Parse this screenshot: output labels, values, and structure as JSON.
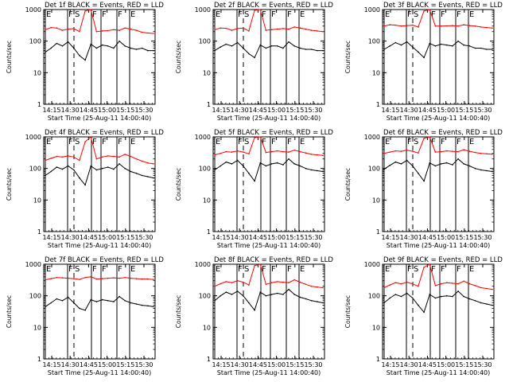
{
  "chart_data": [
    {
      "type": "line",
      "title": "Det 1f BLACK = Events, RED = LLD",
      "xlabel": "Start Time (25-Aug-11 14:00:40)",
      "ylabel": "Counts/sec",
      "yscale": "log",
      "ylim": [
        1,
        1000
      ],
      "x_ticks": [
        "14:15",
        "14:30",
        "14:45",
        "15:00",
        "15:15",
        "15:30"
      ],
      "y_ticks": [
        "1",
        "10",
        "100",
        "1000"
      ],
      "markers": [
        {
          "label": "E",
          "style": "solid"
        },
        {
          "label": "F",
          "style": "solid"
        },
        {
          "label": "S",
          "style": "dashed"
        },
        {
          "label": "F",
          "style": "solid"
        },
        {
          "label": "F",
          "style": "solid"
        },
        {
          "label": "F",
          "style": "solid"
        },
        {
          "label": "E",
          "style": "solid"
        }
      ],
      "series": [
        {
          "color": "#ff0000",
          "values": [
            230,
            270,
            260,
            220,
            240,
            250,
            200,
            900,
            1000,
            200,
            210,
            215,
            230,
            220,
            260,
            240,
            220,
            190,
            180,
            175
          ]
        },
        {
          "color": "#000000",
          "values": [
            45,
            60,
            85,
            70,
            95,
            60,
            35,
            25,
            80,
            60,
            75,
            70,
            60,
            100,
            70,
            60,
            55,
            60,
            50,
            50
          ]
        }
      ]
    },
    {
      "type": "line",
      "title": "Det 2f BLACK = Events, RED = LLD",
      "xlabel": "Start Time (25-Aug-11 14:00:40)",
      "ylabel": "Counts/sec",
      "yscale": "log",
      "ylim": [
        1,
        1000
      ],
      "x_ticks": [
        "14:15",
        "14:30",
        "14:45",
        "15:00",
        "15:15",
        "15:30"
      ],
      "y_ticks": [
        "1",
        "10",
        "100",
        "1000"
      ],
      "markers": [
        {
          "label": "E",
          "style": "solid"
        },
        {
          "label": "F",
          "style": "solid"
        },
        {
          "label": "S",
          "style": "dashed"
        },
        {
          "label": "F",
          "style": "solid"
        },
        {
          "label": "F",
          "style": "solid"
        },
        {
          "label": "F",
          "style": "solid"
        },
        {
          "label": "E",
          "style": "solid"
        }
      ],
      "series": [
        {
          "color": "#ff0000",
          "values": [
            230,
            260,
            255,
            220,
            250,
            260,
            210,
            950,
            1000,
            220,
            230,
            240,
            250,
            240,
            280,
            260,
            240,
            220,
            210,
            200
          ]
        },
        {
          "color": "#000000",
          "values": [
            50,
            65,
            80,
            70,
            90,
            60,
            40,
            30,
            75,
            60,
            70,
            70,
            60,
            95,
            70,
            60,
            55,
            55,
            50,
            50
          ]
        }
      ]
    },
    {
      "type": "line",
      "title": "Det 3f BLACK = Events, RED = LLD",
      "xlabel": "Start Time (25-Aug-11 14:00:40)",
      "ylabel": "Counts/sec",
      "yscale": "log",
      "ylim": [
        1,
        1000
      ],
      "x_ticks": [
        "14:15",
        "14:30",
        "14:45",
        "15:00",
        "15:15",
        "15:30"
      ],
      "y_ticks": [
        "1",
        "10",
        "100",
        "1000"
      ],
      "markers": [
        {
          "label": "E",
          "style": "solid"
        },
        {
          "label": "F",
          "style": "solid"
        },
        {
          "label": "S",
          "style": "dashed"
        },
        {
          "label": "F",
          "style": "solid"
        },
        {
          "label": "F",
          "style": "solid"
        },
        {
          "label": "F",
          "style": "solid"
        },
        {
          "label": "E",
          "style": "solid"
        }
      ],
      "series": [
        {
          "color": "#ff0000",
          "values": [
            300,
            330,
            320,
            300,
            310,
            320,
            280,
            900,
            1000,
            300,
            300,
            305,
            310,
            300,
            330,
            310,
            300,
            280,
            270,
            260
          ]
        },
        {
          "color": "#000000",
          "values": [
            55,
            70,
            90,
            75,
            95,
            65,
            45,
            30,
            85,
            70,
            80,
            75,
            70,
            100,
            75,
            70,
            60,
            60,
            55,
            55
          ]
        }
      ]
    },
    {
      "type": "line",
      "title": "Det 4f BLACK = Events, RED = LLD",
      "xlabel": "Start Time (25-Aug-11 14:00:40)",
      "ylabel": "Counts/sec",
      "yscale": "log",
      "ylim": [
        1,
        1000
      ],
      "x_ticks": [
        "14:15",
        "14:30",
        "14:45",
        "15:00",
        "15:15",
        "15:30"
      ],
      "y_ticks": [
        "1",
        "10",
        "100",
        "1000"
      ],
      "markers": [
        {
          "label": "E",
          "style": "solid"
        },
        {
          "label": "F",
          "style": "solid"
        },
        {
          "label": "S",
          "style": "dashed"
        },
        {
          "label": "F",
          "style": "solid"
        },
        {
          "label": "F",
          "style": "solid"
        },
        {
          "label": "F",
          "style": "solid"
        },
        {
          "label": "E",
          "style": "solid"
        }
      ],
      "series": [
        {
          "color": "#ff0000",
          "values": [
            180,
            210,
            240,
            230,
            250,
            230,
            180,
            700,
            1000,
            200,
            230,
            250,
            240,
            230,
            280,
            240,
            200,
            170,
            150,
            140
          ]
        },
        {
          "color": "#000000",
          "values": [
            60,
            80,
            110,
            95,
            120,
            90,
            50,
            30,
            120,
            90,
            100,
            110,
            95,
            140,
            100,
            80,
            70,
            60,
            55,
            50
          ]
        }
      ]
    },
    {
      "type": "line",
      "title": "Det 5f BLACK = Events, RED = LLD",
      "xlabel": "Start Time (25-Aug-11 14:00:40)",
      "ylabel": "Counts/sec",
      "yscale": "log",
      "ylim": [
        1,
        1000
      ],
      "x_ticks": [
        "14:15",
        "14:30",
        "14:45",
        "15:00",
        "15:15",
        "15:30"
      ],
      "y_ticks": [
        "1",
        "10",
        "100",
        "1000"
      ],
      "markers": [
        {
          "label": "E",
          "style": "solid"
        },
        {
          "label": "F",
          "style": "solid"
        },
        {
          "label": "S",
          "style": "dashed"
        },
        {
          "label": "F",
          "style": "solid"
        },
        {
          "label": "F",
          "style": "solid"
        },
        {
          "label": "F",
          "style": "solid"
        },
        {
          "label": "E",
          "style": "solid"
        }
      ],
      "series": [
        {
          "color": "#ff0000",
          "values": [
            270,
            300,
            340,
            330,
            360,
            330,
            290,
            950,
            1000,
            320,
            340,
            360,
            340,
            330,
            380,
            340,
            310,
            280,
            270,
            260
          ]
        },
        {
          "color": "#000000",
          "values": [
            90,
            120,
            160,
            140,
            180,
            120,
            70,
            40,
            150,
            120,
            140,
            150,
            130,
            200,
            140,
            120,
            100,
            90,
            85,
            80
          ]
        }
      ]
    },
    {
      "type": "line",
      "title": "Det 6f BLACK = Events, RED = LLD",
      "xlabel": "Start Time (25-Aug-11 14:00:40)",
      "ylabel": "Counts/sec",
      "yscale": "log",
      "ylim": [
        1,
        1000
      ],
      "x_ticks": [
        "14:15",
        "14:30",
        "14:45",
        "15:00",
        "15:15",
        "15:30"
      ],
      "y_ticks": [
        "1",
        "10",
        "100",
        "1000"
      ],
      "markers": [
        {
          "label": "E",
          "style": "solid"
        },
        {
          "label": "F",
          "style": "solid"
        },
        {
          "label": "S",
          "style": "dashed"
        },
        {
          "label": "F",
          "style": "solid"
        },
        {
          "label": "F",
          "style": "solid"
        },
        {
          "label": "F",
          "style": "solid"
        },
        {
          "label": "E",
          "style": "solid"
        }
      ],
      "series": [
        {
          "color": "#ff0000",
          "values": [
            300,
            330,
            360,
            350,
            380,
            350,
            310,
            900,
            1000,
            330,
            340,
            360,
            350,
            340,
            390,
            350,
            320,
            300,
            290,
            280
          ]
        },
        {
          "color": "#000000",
          "values": [
            95,
            125,
            160,
            140,
            180,
            120,
            70,
            40,
            150,
            120,
            140,
            150,
            130,
            200,
            140,
            120,
            100,
            90,
            85,
            80
          ]
        }
      ]
    },
    {
      "type": "line",
      "title": "Det 7f BLACK = Events, RED = LLD",
      "xlabel": "Start Time (25-Aug-11 14:00:40)",
      "ylabel": "Counts/sec",
      "yscale": "log",
      "ylim": [
        1,
        1000
      ],
      "x_ticks": [
        "14:15",
        "14:30",
        "14:45",
        "15:00",
        "15:15",
        "15:30"
      ],
      "y_ticks": [
        "1",
        "10",
        "100",
        "1000"
      ],
      "markers": [
        {
          "label": "E",
          "style": "solid"
        },
        {
          "label": "F",
          "style": "solid"
        },
        {
          "label": "S",
          "style": "dashed"
        },
        {
          "label": "F",
          "style": "solid"
        },
        {
          "label": "F",
          "style": "solid"
        },
        {
          "label": "F",
          "style": "solid"
        },
        {
          "label": "E",
          "style": "solid"
        }
      ],
      "series": [
        {
          "color": "#ff0000",
          "values": [
            320,
            350,
            380,
            370,
            360,
            350,
            330,
            380,
            400,
            340,
            350,
            360,
            370,
            360,
            380,
            360,
            350,
            340,
            340,
            330
          ]
        },
        {
          "color": "#000000",
          "values": [
            45,
            60,
            80,
            70,
            90,
            60,
            40,
            35,
            75,
            65,
            75,
            70,
            65,
            95,
            70,
            60,
            55,
            50,
            48,
            45
          ]
        }
      ]
    },
    {
      "type": "line",
      "title": "Det 8f BLACK = Events, RED = LLD",
      "xlabel": "Start Time (25-Aug-11 14:00:40)",
      "ylabel": "Counts/sec",
      "yscale": "log",
      "ylim": [
        1,
        1000
      ],
      "x_ticks": [
        "14:15",
        "14:30",
        "14:45",
        "15:00",
        "15:15",
        "15:30"
      ],
      "y_ticks": [
        "1",
        "10",
        "100",
        "1000"
      ],
      "markers": [
        {
          "label": "E",
          "style": "solid"
        },
        {
          "label": "F",
          "style": "solid"
        },
        {
          "label": "S",
          "style": "dashed"
        },
        {
          "label": "F",
          "style": "solid"
        },
        {
          "label": "F",
          "style": "solid"
        },
        {
          "label": "F",
          "style": "solid"
        },
        {
          "label": "E",
          "style": "solid"
        }
      ],
      "series": [
        {
          "color": "#ff0000",
          "values": [
            200,
            240,
            280,
            260,
            300,
            270,
            220,
            900,
            1000,
            230,
            260,
            280,
            270,
            260,
            320,
            270,
            230,
            200,
            190,
            180
          ]
        },
        {
          "color": "#000000",
          "values": [
            70,
            100,
            130,
            110,
            140,
            100,
            60,
            35,
            130,
            100,
            110,
            120,
            110,
            160,
            110,
            90,
            80,
            70,
            65,
            60
          ]
        }
      ]
    },
    {
      "type": "line",
      "title": "Det 9f BLACK = Events, RED = LLD",
      "xlabel": "Start Time (25-Aug-11 14:00:40)",
      "ylabel": "Counts/sec",
      "yscale": "log",
      "ylim": [
        1,
        1000
      ],
      "x_ticks": [
        "14:15",
        "14:30",
        "14:45",
        "15:00",
        "15:15",
        "15:30"
      ],
      "y_ticks": [
        "1",
        "10",
        "100",
        "1000"
      ],
      "markers": [
        {
          "label": "E",
          "style": "solid"
        },
        {
          "label": "F",
          "style": "solid"
        },
        {
          "label": "S",
          "style": "dashed"
        },
        {
          "label": "F",
          "style": "solid"
        },
        {
          "label": "F",
          "style": "solid"
        },
        {
          "label": "F",
          "style": "solid"
        },
        {
          "label": "E",
          "style": "solid"
        }
      ],
      "series": [
        {
          "color": "#ff0000",
          "values": [
            180,
            220,
            260,
            240,
            270,
            240,
            200,
            800,
            1000,
            210,
            240,
            260,
            250,
            240,
            290,
            240,
            210,
            180,
            170,
            160
          ]
        },
        {
          "color": "#000000",
          "values": [
            60,
            85,
            110,
            95,
            120,
            85,
            50,
            30,
            110,
            85,
            95,
            100,
            95,
            140,
            95,
            80,
            70,
            60,
            55,
            50
          ]
        }
      ]
    }
  ]
}
